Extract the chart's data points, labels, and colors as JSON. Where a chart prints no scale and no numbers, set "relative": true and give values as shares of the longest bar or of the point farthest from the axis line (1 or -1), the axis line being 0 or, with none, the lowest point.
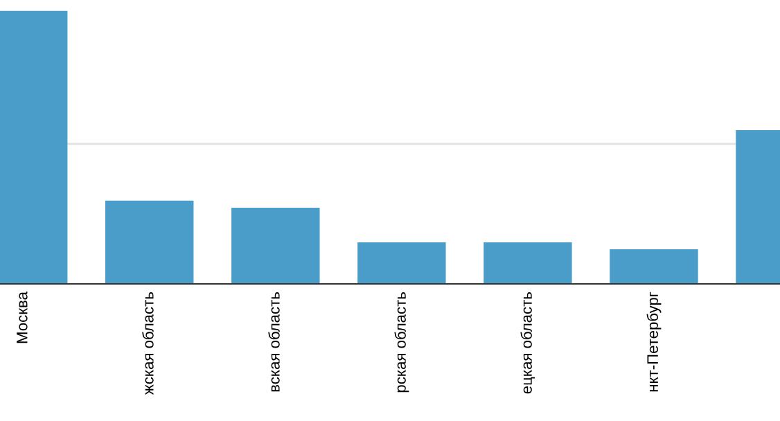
{
  "chart_data": {
    "type": "bar",
    "relative": true,
    "categories": [
      "Москва",
      "жская область",
      "вская область",
      "рская область",
      "ецкая область",
      "нкт-Петербург",
      null
    ],
    "values": [
      1,
      0.305,
      0.279,
      0.152,
      0.152,
      0.127,
      0.563
    ],
    "color": "#4a9cc9",
    "ref_lines": [
      {
        "axis": "y",
        "value": 0.513,
        "color": "#e3e3e3"
      }
    ]
  }
}
